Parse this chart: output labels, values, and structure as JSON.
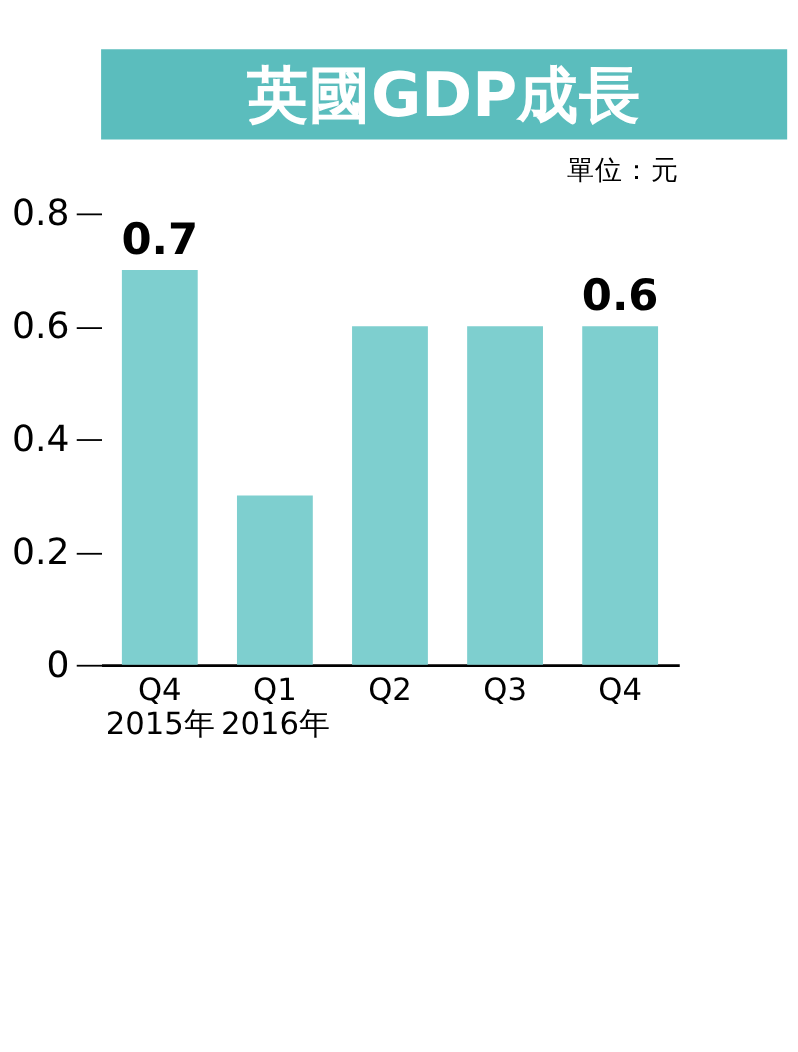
{
  "chart_data": {
    "type": "bar",
    "title": "英國GDP成長",
    "subtitle": "單位：元",
    "categories": [
      "Q4\n2015年",
      "Q1\n2016年",
      "Q2",
      "Q3",
      "Q4"
    ],
    "values": [
      0.7,
      0.3,
      0.6,
      0.6,
      0.6
    ],
    "value_labels": [
      "0.7",
      null,
      null,
      null,
      "0.6"
    ],
    "color": "#7ecfcf",
    "ylim": [
      0,
      0.8
    ],
    "yticks": [
      0,
      0.2,
      0.4,
      0.6,
      0.8
    ],
    "grid": false
  }
}
